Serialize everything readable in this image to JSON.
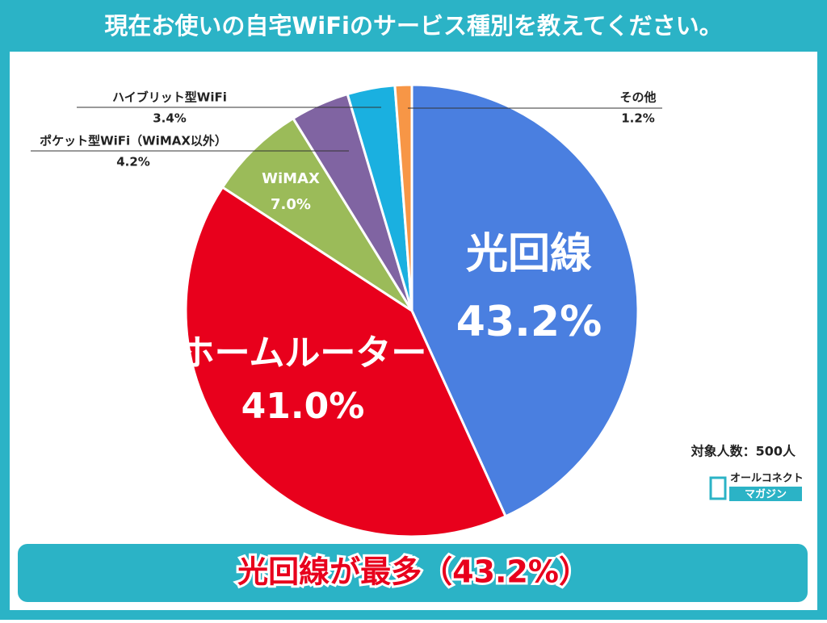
{
  "chart_data": {
    "type": "pie",
    "title": "現在お使いの自宅WiFiのサービス種別を教えてください。",
    "categories": [
      "光回線",
      "ホームルーター",
      "WiMAX",
      "ポケット型WiFi（WiMAX以外）",
      "ハイブリット型WiFi",
      "その他"
    ],
    "values": [
      43.2,
      41.0,
      7.0,
      4.2,
      3.4,
      1.2
    ],
    "value_labels": [
      "43.2%",
      "41.0%",
      "7.0%",
      "4.2%",
      "3.4%",
      "1.2%"
    ],
    "colors": [
      "#4a7fe0",
      "#e8001c",
      "#9bbb59",
      "#8064a2",
      "#1ab0e0",
      "#f79646"
    ],
    "note": "対象人数：500人",
    "conclusion": "光回線が最多（43.2%）",
    "logo": {
      "line1": "オールコネクト",
      "line2": "マガジン"
    }
  }
}
